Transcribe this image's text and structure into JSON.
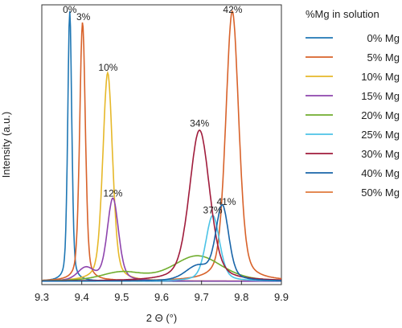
{
  "chart_data": {
    "type": "line",
    "title": "",
    "xlabel": "2 Θ (°)",
    "ylabel": "Intensity (a.u.)",
    "xlim": [
      9.3,
      9.9
    ],
    "ylim": [
      0,
      1.0
    ],
    "x_ticks": [
      "9.3",
      "9.4",
      "9.5",
      "9.6",
      "9.7",
      "9.8",
      "9.9"
    ],
    "legend": {
      "title": "%Mg in solution",
      "placement": "right"
    },
    "series": [
      {
        "name": "0% Mg",
        "color": "#1f77b4",
        "peaks": [
          {
            "center": 9.37,
            "height": 0.965,
            "width": 0.005
          }
        ]
      },
      {
        "name": "5% Mg",
        "color": "#d8622a",
        "peaks": [
          {
            "center": 9.402,
            "height": 0.925,
            "width": 0.007
          },
          {
            "center": 9.777,
            "height": 0.965,
            "width": 0.016
          }
        ]
      },
      {
        "name": "10% Mg",
        "color": "#e6b829",
        "peaks": [
          {
            "center": 9.465,
            "height": 0.745,
            "width": 0.012
          }
        ]
      },
      {
        "name": "15% Mg",
        "color": "#8e44ad",
        "peaks": [
          {
            "center": 9.478,
            "height": 0.295,
            "width": 0.014
          },
          {
            "center": 9.41,
            "height": 0.045,
            "width": 0.02
          }
        ]
      },
      {
        "name": "20% Mg",
        "color": "#70ad2e",
        "peaks": [
          {
            "center": 9.69,
            "height": 0.09,
            "width": 0.06
          },
          {
            "center": 9.5,
            "height": 0.03,
            "width": 0.05
          }
        ]
      },
      {
        "name": "25% Mg",
        "color": "#4cc3e6",
        "peaks": [
          {
            "center": 9.728,
            "height": 0.235,
            "width": 0.017
          }
        ]
      },
      {
        "name": "30% Mg",
        "color": "#a01c3c",
        "peaks": [
          {
            "center": 9.695,
            "height": 0.54,
            "width": 0.025
          }
        ]
      },
      {
        "name": "40% Mg",
        "color": "#1864a8",
        "peaks": [
          {
            "center": 9.752,
            "height": 0.265,
            "width": 0.016
          },
          {
            "center": 9.69,
            "height": 0.05,
            "width": 0.03
          }
        ]
      },
      {
        "name": "50% Mg",
        "color": "#e07a3c",
        "peaks": []
      }
    ],
    "annotations": [
      {
        "text": "0%",
        "x": 9.37,
        "y": 0.985
      },
      {
        "text": "3%",
        "x": 9.404,
        "y": 0.945
      },
      {
        "text": "10%",
        "x": 9.466,
        "y": 0.765
      },
      {
        "text": "12%",
        "x": 9.478,
        "y": 0.315
      },
      {
        "text": "34%",
        "x": 9.695,
        "y": 0.565
      },
      {
        "text": "37%",
        "x": 9.728,
        "y": 0.255
      },
      {
        "text": "41%",
        "x": 9.762,
        "y": 0.285
      },
      {
        "text": "42%",
        "x": 9.778,
        "y": 0.985
      }
    ],
    "grid": false
  }
}
